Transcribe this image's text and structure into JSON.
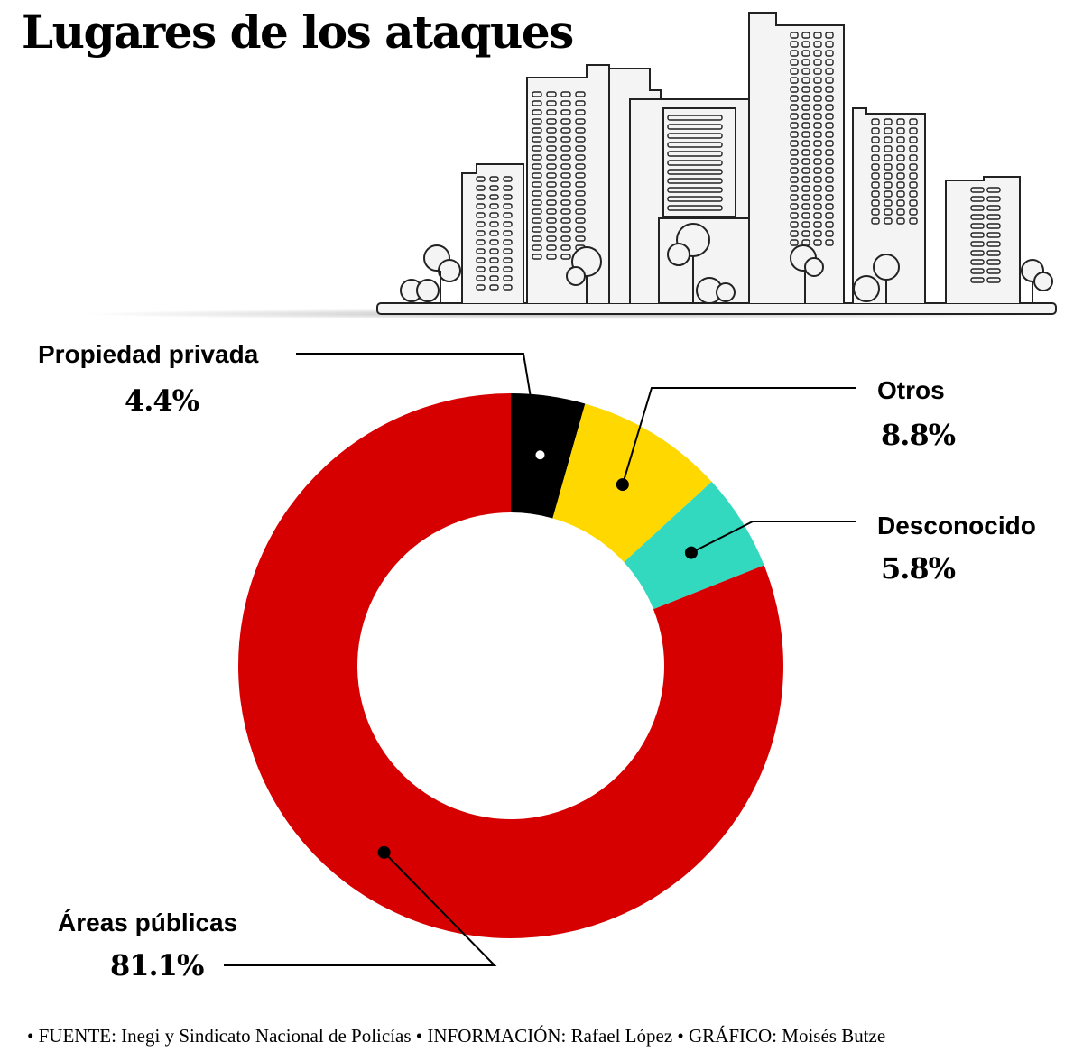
{
  "title": "Lugares de los ataques",
  "illustration": "city-skyline-icon",
  "chart_data": {
    "type": "pie",
    "style": "donut",
    "title": "Lugares de los ataques",
    "unit": "%",
    "slices": [
      {
        "label": "Propiedad privada",
        "value": 4.4,
        "display": "4.4%",
        "color": "#000000"
      },
      {
        "label": "Otros",
        "value": 8.8,
        "display": "8.8%",
        "color": "#ffd800"
      },
      {
        "label": "Desconocido",
        "value": 5.8,
        "display": "5.8%",
        "color": "#32d9bf"
      },
      {
        "label": "Áreas públicas",
        "value": 81.1,
        "display": "81.1%",
        "color": "#d60000"
      }
    ]
  },
  "footer": {
    "text": "• FUENTE: Inegi y Sindicato Nacional de Policías • INFORMACIÓN: Rafael López • GRÁFICO: Moisés Butze"
  }
}
